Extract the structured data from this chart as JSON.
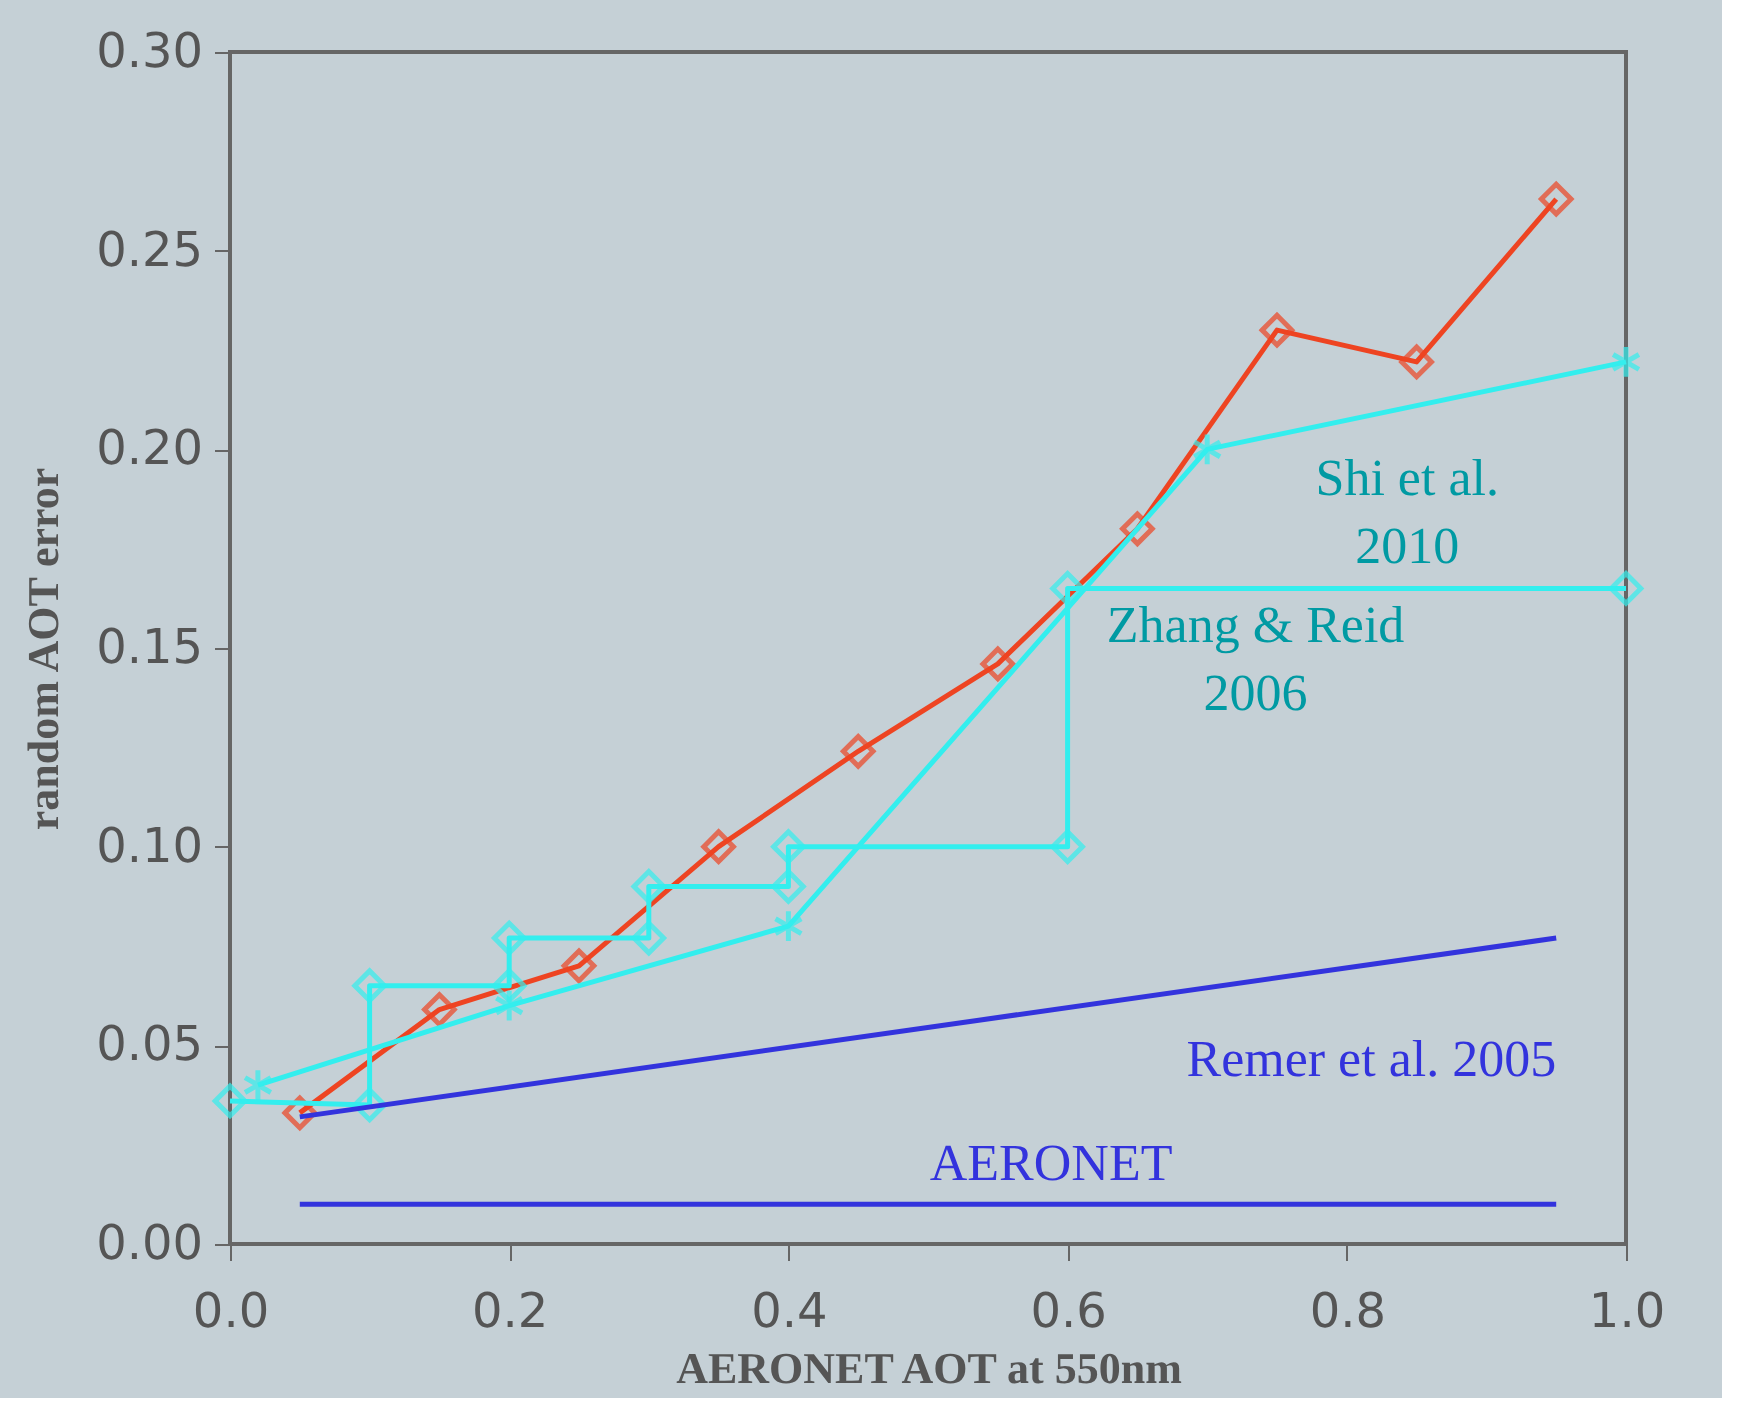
{
  "chart_data": {
    "type": "line",
    "xlabel": "AERONET AOT at 550nm",
    "ylabel": "random AOT error",
    "xlim": [
      0,
      1.0
    ],
    "ylim": [
      0,
      0.3
    ],
    "xticks": [
      {
        "value": 0,
        "label": "0.0"
      },
      {
        "value": 0.2,
        "label": "0.2"
      },
      {
        "value": 0.4,
        "label": "0.4"
      },
      {
        "value": 0.6,
        "label": "0.6"
      },
      {
        "value": 0.8,
        "label": "0.8"
      },
      {
        "value": 1.0,
        "label": "1.0"
      }
    ],
    "yticks": [
      {
        "value": 0,
        "label": "0.00"
      },
      {
        "value": 0.05,
        "label": "0.05"
      },
      {
        "value": 0.1,
        "label": "0.10"
      },
      {
        "value": 0.15,
        "label": "0.15"
      },
      {
        "value": 0.2,
        "label": "0.20"
      },
      {
        "value": 0.25,
        "label": "0.25"
      },
      {
        "value": 0.3,
        "label": "0.30"
      }
    ],
    "grid": false,
    "series": [
      {
        "color": "#ee4422",
        "marker": "diamond",
        "x": [
          0.05,
          0.15,
          0.25,
          0.35,
          0.45,
          0.55,
          0.65,
          0.75,
          0.85,
          0.95
        ],
        "values": [
          0.033,
          0.059,
          0.07,
          0.1,
          0.124,
          0.146,
          0.18,
          0.23,
          0.222,
          0.263
        ]
      },
      {
        "name": "Shi et al.\n2010",
        "color": "#33eeee",
        "marker": "cross",
        "x": [
          0.02,
          0.2,
          0.4,
          0.7,
          1.0
        ],
        "values": [
          0.04,
          0.06,
          0.08,
          0.2,
          0.222
        ]
      },
      {
        "name": "Zhang & Reid\n2006",
        "color": "#33eeee",
        "marker": "diamond",
        "x": [
          0,
          0.1,
          0.1,
          0.2,
          0.2,
          0.3,
          0.3,
          0.4,
          0.4,
          0.6,
          0.6,
          1.0
        ],
        "values": [
          0.036,
          0.035,
          0.065,
          0.065,
          0.077,
          0.077,
          0.09,
          0.09,
          0.1,
          0.1,
          0.165,
          0.165
        ]
      },
      {
        "name": "Remer et al. 2005",
        "color": "#3333dd",
        "marker": "none",
        "x": [
          0.05,
          0.95
        ],
        "values": [
          0.032,
          0.077
        ]
      },
      {
        "name": "AERONET",
        "color": "#3333dd",
        "marker": "none",
        "x": [
          0.05,
          0.95
        ],
        "values": [
          0.01,
          0.01
        ]
      }
    ]
  }
}
